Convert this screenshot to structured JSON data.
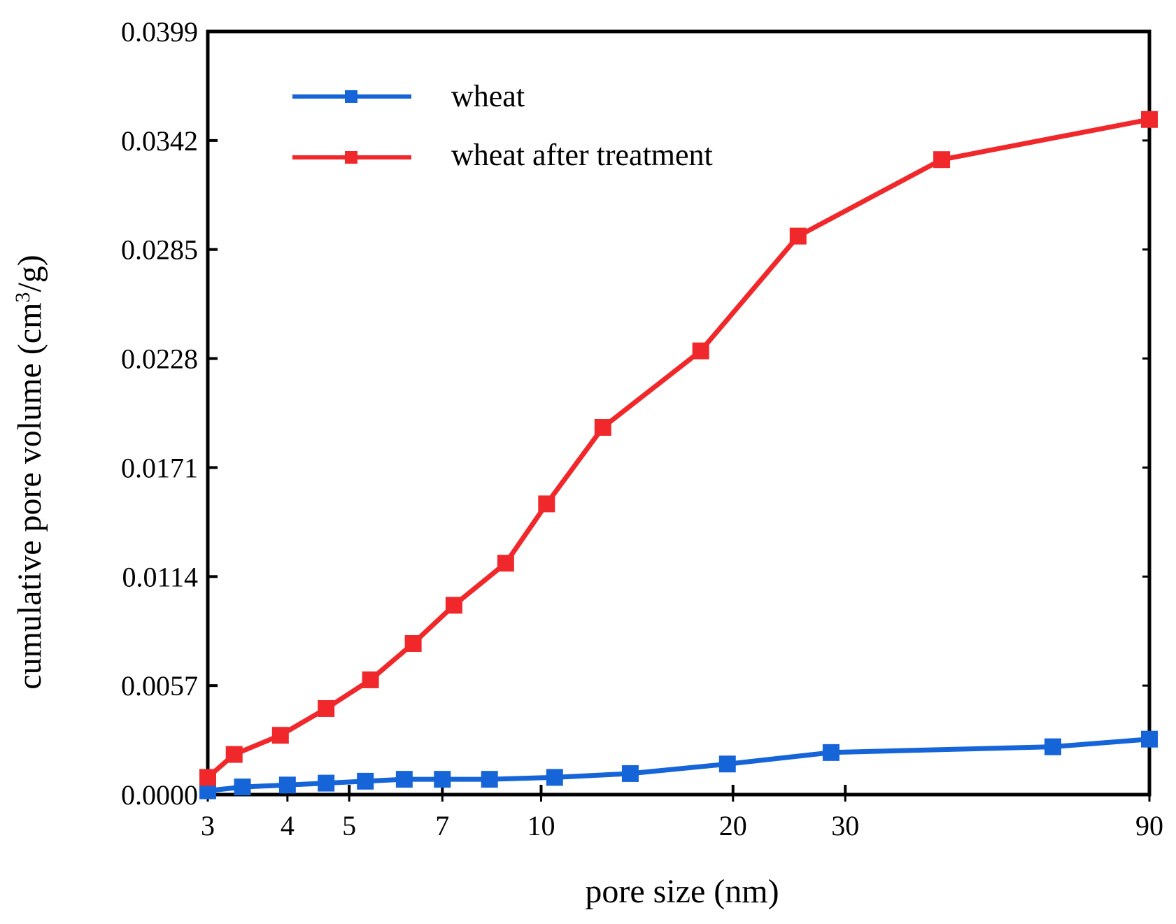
{
  "chart_data": {
    "type": "line",
    "title": "",
    "xlabel": "pore size (nm)",
    "ylabel_parts": {
      "prefix": "cumulative pore volume (cm",
      "sup": "3",
      "suffix": "/g)"
    },
    "x_scale": "log",
    "xlim": [
      3,
      90
    ],
    "ylim": [
      0.0,
      0.0399
    ],
    "x_ticks": [
      3,
      4,
      5,
      7,
      10,
      20,
      30,
      90
    ],
    "x_tick_labels": [
      "3",
      "4",
      "5",
      "7",
      "10",
      "20",
      "30",
      "90"
    ],
    "y_ticks": [
      0.0,
      0.0057,
      0.0114,
      0.0171,
      0.0228,
      0.0285,
      0.0342,
      0.0399
    ],
    "y_tick_labels": [
      "0.0000",
      "0.0057",
      "0.0114",
      "0.0171",
      "0.0228",
      "0.0285",
      "0.0342",
      "0.0399"
    ],
    "legend_position": "top-left",
    "series": [
      {
        "name": "wheat",
        "color": "#1565d8",
        "marker": "square",
        "x": [
          3.0,
          3.4,
          4.0,
          4.6,
          5.3,
          6.1,
          7.0,
          8.3,
          10.5,
          13.8,
          19.6,
          28.5,
          63.5,
          90.0
        ],
        "y": [
          0.0002,
          0.0004,
          0.0005,
          0.0006,
          0.0007,
          0.0008,
          0.0008,
          0.0008,
          0.0009,
          0.0011,
          0.0016,
          0.0022,
          0.0025,
          0.0029
        ]
      },
      {
        "name": "wheat after treatment",
        "color": "#f0282b",
        "marker": "square",
        "x": [
          3.0,
          3.3,
          3.9,
          4.6,
          5.4,
          6.3,
          7.3,
          8.8,
          10.2,
          12.5,
          17.8,
          25.3,
          42.5,
          90.0
        ],
        "y": [
          0.0009,
          0.0021,
          0.0031,
          0.0045,
          0.006,
          0.0079,
          0.0099,
          0.0121,
          0.0152,
          0.0192,
          0.0232,
          0.0292,
          0.0332,
          0.0353
        ]
      }
    ]
  }
}
